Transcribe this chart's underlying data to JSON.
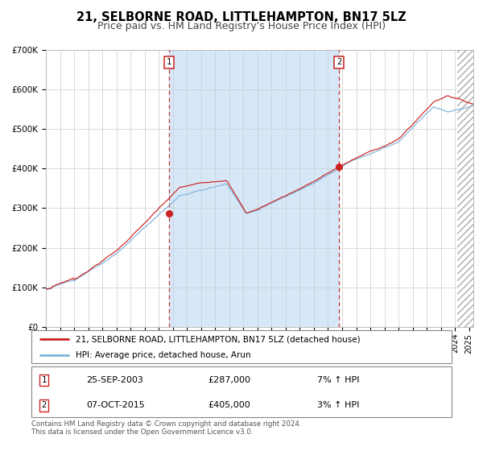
{
  "title": "21, SELBORNE ROAD, LITTLEHAMPTON, BN17 5LZ",
  "subtitle": "Price paid vs. HM Land Registry's House Price Index (HPI)",
  "ylim": [
    0,
    700000
  ],
  "yticks": [
    0,
    100000,
    200000,
    300000,
    400000,
    500000,
    600000,
    700000
  ],
  "ytick_labels": [
    "£0",
    "£100K",
    "£200K",
    "£300K",
    "£400K",
    "£500K",
    "£600K",
    "£700K"
  ],
  "xlim_start": 1995.0,
  "xlim_end": 2025.3,
  "plot_bg_color": "#ffffff",
  "span_color": "#d6e8f7",
  "grid_color": "#cccccc",
  "line1_color": "#cc2222",
  "line2_color": "#7fb3d9",
  "sale1_x": 2003.73,
  "sale1_y": 287000,
  "sale2_x": 2015.77,
  "sale2_y": 405000,
  "vline_color": "#cc3333",
  "legend1_label": "21, SELBORNE ROAD, LITTLEHAMPTON, BN17 5LZ (detached house)",
  "legend2_label": "HPI: Average price, detached house, Arun",
  "table_row1": [
    "1",
    "25-SEP-2003",
    "£287,000",
    "7% ↑ HPI"
  ],
  "table_row2": [
    "2",
    "07-OCT-2015",
    "£405,000",
    "3% ↑ HPI"
  ],
  "footnote1": "Contains HM Land Registry data © Crown copyright and database right 2024.",
  "footnote2": "This data is licensed under the Open Government Licence v3.0.",
  "title_fontsize": 10.5,
  "subtitle_fontsize": 9,
  "axis_fontsize": 7.5
}
